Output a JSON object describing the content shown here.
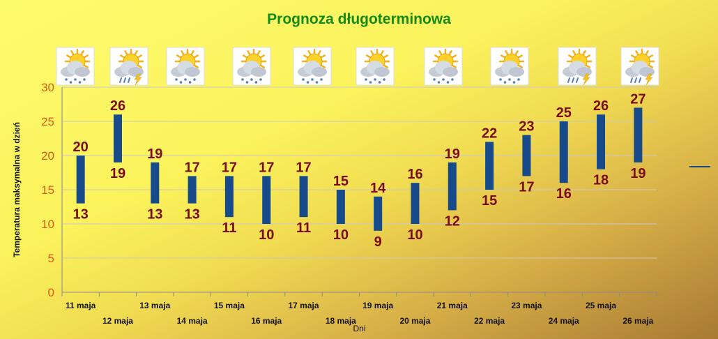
{
  "chart_data": {
    "type": "bar",
    "subtype": "floating-range",
    "title": "Prognoza długoterminowa",
    "xlabel": "Dni",
    "ylabel": "Temperatura maksymalna w dzień",
    "ylim": [
      0,
      30
    ],
    "yticks": [
      "0",
      "5",
      "10",
      "15",
      "20",
      "25",
      "30"
    ],
    "grid": true,
    "categories": [
      "11 maja",
      "12 maja",
      "13 maja",
      "14 maja",
      "15 maja",
      "16 maja",
      "17 maja",
      "18 maja",
      "19 maja",
      "20 maja",
      "21 maja",
      "22 maja",
      "23 maja",
      "24 maja",
      "25 maja",
      "26 maja"
    ],
    "series": [
      {
        "values_low": [
          13,
          19,
          13,
          13,
          11,
          10,
          11,
          10,
          9,
          10,
          12,
          15,
          17,
          16,
          18,
          19
        ]
      },
      {
        "values_high": [
          20,
          26,
          19,
          17,
          17,
          17,
          17,
          15,
          14,
          16,
          19,
          22,
          23,
          25,
          26,
          27
        ]
      }
    ],
    "weather_icons": [
      "sun-cloud-rain-icon",
      "sun-cloud-storm-icon",
      "sun-cloud-rain-icon",
      "sun-cloud-rain-icon",
      "sun-cloud-rain-icon",
      "sun-cloud-rain-icon",
      "sun-cloud-rain-icon",
      "sun-cloud-rain-icon",
      "sun-cloud-storm-icon",
      "sun-cloud-storm-icon"
    ],
    "colors": {
      "bar": "#174a8a",
      "label": "#7a0d14",
      "axis_tick": "#e05a1a",
      "title": "#138a13",
      "grid": "#c8c8c8"
    }
  }
}
